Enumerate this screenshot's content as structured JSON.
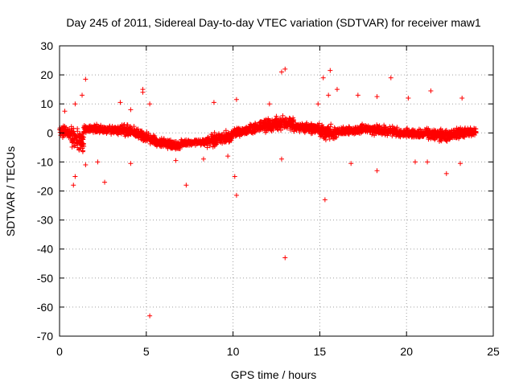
{
  "chart_data": {
    "type": "scatter",
    "title": "Day 245 of 2011, Sidereal Day-to-day VTEC variation (SDTVAR) for receiver maw1",
    "xlabel": "GPS time / hours",
    "ylabel": "SDTVAR / TECUs",
    "xlim": [
      0,
      25
    ],
    "ylim": [
      -70,
      30
    ],
    "xticks": [
      0,
      5,
      10,
      15,
      20,
      25
    ],
    "yticks": [
      30,
      20,
      10,
      0,
      -10,
      -20,
      -30,
      -40,
      -50,
      -60,
      -70
    ],
    "grid": true,
    "marker": "+",
    "color": "#ff0000",
    "series": [
      {
        "name": "SDTVAR",
        "points": [
          [
            5.2,
            -63
          ],
          [
            13.0,
            -43
          ],
          [
            15.3,
            -23
          ],
          [
            10.2,
            -21.5
          ],
          [
            0.8,
            -18
          ],
          [
            7.3,
            -18
          ],
          [
            2.6,
            -17
          ],
          [
            0.9,
            -15
          ],
          [
            18.3,
            -13
          ],
          [
            22.3,
            -14
          ],
          [
            10.1,
            -15
          ],
          [
            12.8,
            21
          ],
          [
            13.0,
            22
          ],
          [
            15.6,
            21.5
          ],
          [
            15.2,
            19
          ],
          [
            1.5,
            18.5
          ],
          [
            19.1,
            19
          ],
          [
            4.8,
            14
          ],
          [
            4.8,
            15
          ],
          [
            1.3,
            13
          ],
          [
            16.0,
            15
          ],
          [
            21.4,
            14.5
          ],
          [
            15.5,
            13
          ],
          [
            5.2,
            10
          ],
          [
            3.5,
            10.5
          ],
          [
            8.9,
            10.5
          ],
          [
            10.2,
            11.5
          ],
          [
            0.9,
            10
          ],
          [
            23.2,
            12
          ],
          [
            17.2,
            13
          ],
          [
            18.3,
            12.5
          ],
          [
            20.1,
            12
          ],
          [
            12.1,
            10
          ],
          [
            0.3,
            7.5
          ],
          [
            4.1,
            8
          ],
          [
            14.9,
            10
          ],
          [
            2.2,
            -10
          ],
          [
            4.1,
            -10.5
          ],
          [
            8.3,
            -9
          ],
          [
            16.8,
            -10.5
          ],
          [
            21.2,
            -10
          ],
          [
            23.1,
            -10.5
          ],
          [
            20.5,
            -10
          ],
          [
            12.8,
            -9
          ],
          [
            9.7,
            -8
          ],
          [
            6.7,
            -9.5
          ],
          [
            1.5,
            -11
          ]
        ]
      }
    ],
    "bands": [
      {
        "x0": 0.0,
        "x1": 0.7,
        "c0": 0.5,
        "c1": 0.2,
        "s": 2.5
      },
      {
        "x0": 0.7,
        "x1": 1.4,
        "c0": -1.5,
        "c1": -3.0,
        "s": 4.5
      },
      {
        "x0": 1.4,
        "x1": 3.5,
        "c0": 1.5,
        "c1": 1.0,
        "s": 1.8
      },
      {
        "x0": 3.5,
        "x1": 4.5,
        "c0": 1.0,
        "c1": 0.0,
        "s": 2.5
      },
      {
        "x0": 4.5,
        "x1": 5.5,
        "c0": -0.5,
        "c1": -2.5,
        "s": 2.2
      },
      {
        "x0": 5.5,
        "x1": 7.0,
        "c0": -3.0,
        "c1": -4.5,
        "s": 2.0
      },
      {
        "x0": 7.0,
        "x1": 8.5,
        "c0": -3.5,
        "c1": -3.0,
        "s": 1.5
      },
      {
        "x0": 8.5,
        "x1": 10.0,
        "c0": -3.0,
        "c1": -1.0,
        "s": 2.5
      },
      {
        "x0": 10.0,
        "x1": 11.5,
        "c0": 0.0,
        "c1": 2.0,
        "s": 2.0
      },
      {
        "x0": 11.5,
        "x1": 13.5,
        "c0": 2.5,
        "c1": 3.5,
        "s": 2.8
      },
      {
        "x0": 13.5,
        "x1": 15.0,
        "c0": 2.0,
        "c1": 1.5,
        "s": 2.2
      },
      {
        "x0": 15.0,
        "x1": 16.0,
        "c0": 0.5,
        "c1": 0.0,
        "s": 3.0
      },
      {
        "x0": 16.0,
        "x1": 18.0,
        "c0": 0.5,
        "c1": 1.5,
        "s": 1.8
      },
      {
        "x0": 18.0,
        "x1": 19.5,
        "c0": 1.0,
        "c1": 0.5,
        "s": 2.2
      },
      {
        "x0": 19.5,
        "x1": 21.0,
        "c0": 0.0,
        "c1": -0.5,
        "s": 1.8
      },
      {
        "x0": 21.0,
        "x1": 22.5,
        "c0": 0.0,
        "c1": -1.0,
        "s": 2.5
      },
      {
        "x0": 22.5,
        "x1": 24.0,
        "c0": -0.5,
        "c1": 0.5,
        "s": 2.2
      }
    ]
  }
}
